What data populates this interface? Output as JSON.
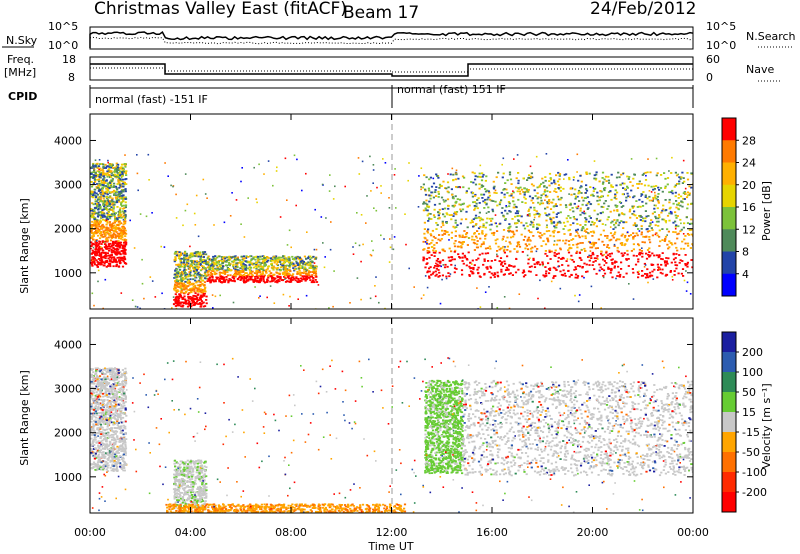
{
  "header": {
    "title": "Christmas Valley East (fitACF)",
    "beam": "Beam 17",
    "date": "24/Feb/2012"
  },
  "summary": {
    "nsky_label": "N.Sky",
    "nsearch_label": "N.Search",
    "counts_ticks": [
      "10^5",
      "10^0"
    ],
    "freq_label_1": "Freq.",
    "freq_label_2": "[MHz]",
    "freq_ticks": [
      "18",
      "8"
    ],
    "nave_label": "Nave",
    "nave_ticks": [
      "60",
      "0"
    ],
    "cpid_label": "CPID",
    "cpid_segments": [
      "normal (fast) -151 IF",
      "normal (fast) 151 IF"
    ]
  },
  "chart_data": [
    {
      "type": "heatmap",
      "panel": "power",
      "ylabel": "Slant Range [km]",
      "yticks": [
        "4000",
        "3000",
        "2000",
        "1000"
      ],
      "ylim": [
        180,
        4600
      ],
      "xlim_hours": [
        0,
        24
      ],
      "colorbar_label": "Power [dB]",
      "colorbar_ticks": [
        "28",
        "24",
        "20",
        "16",
        "12",
        "8",
        "4"
      ],
      "colorbar_colors": [
        "#ff0000",
        "#ff7a00",
        "#ffb000",
        "#e6d400",
        "#7cc23a",
        "#4f8a5a",
        "#2244a8",
        "#0000ff"
      ],
      "echo_regions": [
        {
          "t0": 0.0,
          "t1": 1.4,
          "r0": 1150,
          "r1": 3500,
          "level": "high near 1200-1500 km, mixed above"
        },
        {
          "t0": 3.3,
          "t1": 4.6,
          "r0": 250,
          "r1": 1500,
          "level": "mixed"
        },
        {
          "t0": 4.6,
          "t1": 9.0,
          "r0": 800,
          "r1": 1400,
          "level": "low"
        },
        {
          "t0": 13.2,
          "t1": 24.0,
          "r0": 900,
          "r1": 3300,
          "level": "high near 1100-1400 km, mixed above"
        }
      ]
    },
    {
      "type": "heatmap",
      "panel": "velocity",
      "ylabel": "Slant Range [km]",
      "yticks": [
        "4000",
        "3000",
        "2000",
        "1000"
      ],
      "ylim": [
        180,
        4600
      ],
      "xlim_hours": [
        0,
        24
      ],
      "xlabel": "Time UT",
      "xticks": [
        "00:00",
        "04:00",
        "08:00",
        "12:00",
        "16:00",
        "20:00",
        "00:00"
      ],
      "colorbar_label": "Velocity [m s⁻¹]",
      "colorbar_ticks": [
        "200",
        "100",
        "50",
        "15",
        "-15",
        "-50",
        "-100",
        "-200"
      ],
      "colorbar_colors": [
        "#1b1fa0",
        "#2c5cb0",
        "#2e8b57",
        "#66cc33",
        "#c8c8c8",
        "#ffa500",
        "#ff7000",
        "#ff2a00",
        "#ff0000"
      ],
      "echo_regions": [
        {
          "t0": 0.0,
          "t1": 1.4,
          "r0": 1150,
          "r1": 3500,
          "level": "mostly near zero (grey)"
        },
        {
          "t0": 3.3,
          "t1": 4.6,
          "r0": 300,
          "r1": 1400,
          "level": "grey with green patches"
        },
        {
          "t0": 13.3,
          "t1": 14.8,
          "r0": 1100,
          "r1": 3200,
          "level": "green (positive)"
        },
        {
          "t0": 14.8,
          "t1": 24.0,
          "r0": 1050,
          "r1": 3200,
          "level": "mostly near zero (grey)"
        },
        {
          "t0": 3.0,
          "t1": 12.5,
          "r0": 200,
          "r1": 400,
          "level": "orange (negative) near ground"
        }
      ]
    }
  ]
}
